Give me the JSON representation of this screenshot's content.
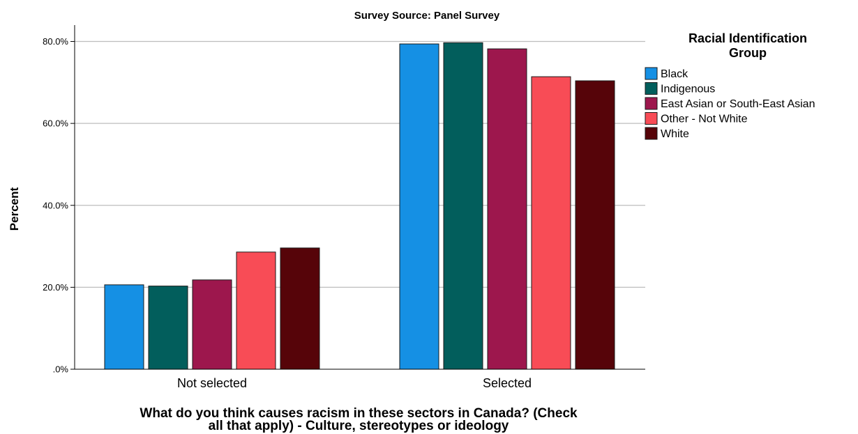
{
  "chart_data": {
    "type": "bar",
    "title": "Survey Source: Panel Survey",
    "xlabel_lines": [
      "What do you think causes racism in these sectors in Canada? (Check",
      "all that apply) - Culture, stereotypes or ideology"
    ],
    "ylabel": "Percent",
    "ylim": [
      0,
      84
    ],
    "yticks": [
      0,
      20,
      40,
      60,
      80
    ],
    "ytick_labels": [
      ".0%",
      "20.0%",
      "40.0%",
      "60.0%",
      "80.0%"
    ],
    "grid": true,
    "legend": {
      "title_lines": [
        "Racial Identification",
        "Group"
      ],
      "placement": "right"
    },
    "categories": [
      "Not selected",
      "Selected"
    ],
    "series": [
      {
        "name": "Black",
        "color": "#1590e4",
        "values": [
          20.6,
          79.4
        ]
      },
      {
        "name": "Indigenous",
        "color": "#025e5c",
        "values": [
          20.3,
          79.7
        ]
      },
      {
        "name": "East Asian or South-East Asian",
        "color": "#9d174d",
        "values": [
          21.8,
          78.2
        ]
      },
      {
        "name": "Other - Not White",
        "color": "#f84c56",
        "values": [
          28.6,
          71.4
        ]
      },
      {
        "name": "White",
        "color": "#560409",
        "values": [
          29.6,
          70.4
        ]
      }
    ]
  }
}
